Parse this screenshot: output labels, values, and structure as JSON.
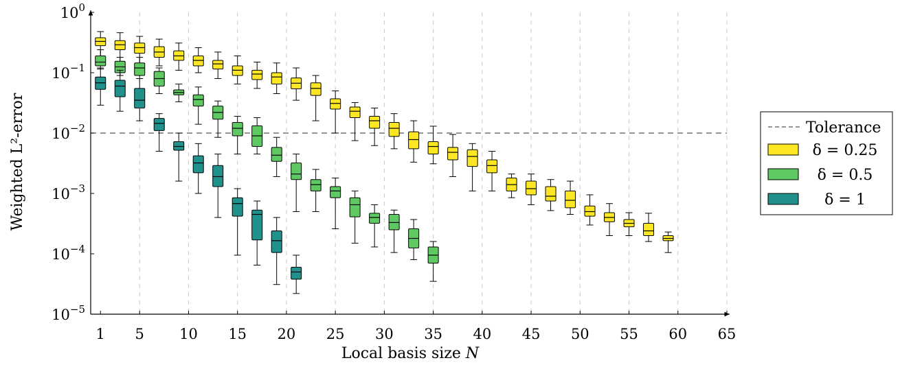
{
  "chart_data": {
    "type": "box",
    "xlabel": "Local basis size N",
    "ylabel": "Weighted L²-error",
    "x_ticks": [
      1,
      5,
      10,
      15,
      20,
      25,
      30,
      35,
      40,
      45,
      50,
      55,
      60,
      65
    ],
    "y_ticks": [
      {
        "value": 1,
        "base": "10",
        "exp": "0"
      },
      {
        "value": 0.1,
        "base": "10",
        "exp": "−1"
      },
      {
        "value": 0.01,
        "base": "10",
        "exp": "−2"
      },
      {
        "value": 0.001,
        "base": "10",
        "exp": "−3"
      },
      {
        "value": 0.0001,
        "base": "10",
        "exp": "−4"
      },
      {
        "value": 1e-05,
        "base": "10",
        "exp": "−5"
      }
    ],
    "xlim": [
      0,
      65
    ],
    "ylim": [
      1e-05,
      1
    ],
    "y_scale": "log",
    "grid": "x-dashed",
    "legend_position": "right",
    "tolerance": {
      "label": "Tolerance",
      "value": 0.01,
      "color": "#555555"
    },
    "series": [
      {
        "name": "δ = 0.25",
        "color": "#fde725",
        "boxes": [
          {
            "x": 1,
            "low": 0.15,
            "q1": 0.28,
            "median": 0.33,
            "q3": 0.38,
            "high": 0.48
          },
          {
            "x": 3,
            "low": 0.15,
            "q1": 0.24,
            "median": 0.29,
            "q3": 0.34,
            "high": 0.46
          },
          {
            "x": 5,
            "low": 0.14,
            "q1": 0.21,
            "median": 0.26,
            "q3": 0.31,
            "high": 0.4
          },
          {
            "x": 7,
            "low": 0.13,
            "q1": 0.18,
            "median": 0.22,
            "q3": 0.27,
            "high": 0.36
          },
          {
            "x": 9,
            "low": 0.11,
            "q1": 0.16,
            "median": 0.19,
            "q3": 0.23,
            "high": 0.31
          },
          {
            "x": 11,
            "low": 0.1,
            "q1": 0.13,
            "median": 0.16,
            "q3": 0.19,
            "high": 0.26
          },
          {
            "x": 13,
            "low": 0.08,
            "q1": 0.115,
            "median": 0.14,
            "q3": 0.16,
            "high": 0.22
          },
          {
            "x": 15,
            "low": 0.065,
            "q1": 0.09,
            "median": 0.11,
            "q3": 0.13,
            "high": 0.19
          },
          {
            "x": 17,
            "low": 0.055,
            "q1": 0.077,
            "median": 0.095,
            "q3": 0.11,
            "high": 0.15
          },
          {
            "x": 19,
            "low": 0.045,
            "q1": 0.065,
            "median": 0.085,
            "q3": 0.1,
            "high": 0.145
          },
          {
            "x": 21,
            "low": 0.035,
            "q1": 0.054,
            "median": 0.067,
            "q3": 0.082,
            "high": 0.12
          },
          {
            "x": 23,
            "low": 0.016,
            "q1": 0.042,
            "median": 0.055,
            "q3": 0.068,
            "high": 0.09
          },
          {
            "x": 25,
            "low": 0.01,
            "q1": 0.025,
            "median": 0.031,
            "q3": 0.037,
            "high": 0.05
          },
          {
            "x": 27,
            "low": 0.0075,
            "q1": 0.018,
            "median": 0.023,
            "q3": 0.027,
            "high": 0.032
          },
          {
            "x": 29,
            "low": 0.0062,
            "q1": 0.012,
            "median": 0.016,
            "q3": 0.019,
            "high": 0.026
          },
          {
            "x": 31,
            "low": 0.0055,
            "q1": 0.0088,
            "median": 0.012,
            "q3": 0.015,
            "high": 0.021
          },
          {
            "x": 33,
            "low": 0.0033,
            "q1": 0.0055,
            "median": 0.0078,
            "q3": 0.0105,
            "high": 0.016
          },
          {
            "x": 35,
            "low": 0.0031,
            "q1": 0.0045,
            "median": 0.006,
            "q3": 0.0072,
            "high": 0.013
          },
          {
            "x": 37,
            "low": 0.0019,
            "q1": 0.0036,
            "median": 0.0048,
            "q3": 0.0058,
            "high": 0.0095
          },
          {
            "x": 39,
            "low": 0.0011,
            "q1": 0.0028,
            "median": 0.0041,
            "q3": 0.0053,
            "high": 0.0067
          },
          {
            "x": 41,
            "low": 0.0011,
            "q1": 0.0022,
            "median": 0.0029,
            "q3": 0.0036,
            "high": 0.005
          },
          {
            "x": 43,
            "low": 0.00085,
            "q1": 0.0011,
            "median": 0.0014,
            "q3": 0.0018,
            "high": 0.0021
          },
          {
            "x": 45,
            "low": 0.00065,
            "q1": 0.00095,
            "median": 0.0012,
            "q3": 0.0016,
            "high": 0.0021
          },
          {
            "x": 47,
            "low": 0.00052,
            "q1": 0.00075,
            "median": 0.0009,
            "q3": 0.0013,
            "high": 0.0017
          },
          {
            "x": 49,
            "low": 0.00045,
            "q1": 0.00058,
            "median": 0.00077,
            "q3": 0.0011,
            "high": 0.0016
          },
          {
            "x": 51,
            "low": 0.0003,
            "q1": 0.00042,
            "median": 0.0005,
            "q3": 0.00062,
            "high": 0.00095
          },
          {
            "x": 53,
            "low": 0.0002,
            "q1": 0.00034,
            "median": 0.0004,
            "q3": 0.00048,
            "high": 0.00068
          },
          {
            "x": 55,
            "low": 0.0002,
            "q1": 0.00028,
            "median": 0.00032,
            "q3": 0.00037,
            "high": 0.00048
          },
          {
            "x": 57,
            "low": 0.00016,
            "q1": 0.0002,
            "median": 0.00024,
            "q3": 0.00032,
            "high": 0.00047
          },
          {
            "x": 59,
            "low": 0.000105,
            "q1": 0.000165,
            "median": 0.00018,
            "q3": 0.0002,
            "high": 0.00023
          }
        ]
      },
      {
        "name": "δ = 0.5",
        "color": "#5ec962",
        "boxes": [
          {
            "x": 1,
            "low": 0.115,
            "q1": 0.13,
            "median": 0.15,
            "q3": 0.19,
            "high": 0.24
          },
          {
            "x": 3,
            "low": 0.09,
            "q1": 0.1,
            "median": 0.125,
            "q3": 0.155,
            "high": 0.18
          },
          {
            "x": 5,
            "low": 0.08,
            "q1": 0.09,
            "median": 0.12,
            "q3": 0.145,
            "high": 0.18
          },
          {
            "x": 7,
            "low": 0.045,
            "q1": 0.06,
            "median": 0.08,
            "q3": 0.105,
            "high": 0.12
          },
          {
            "x": 9,
            "low": 0.033,
            "q1": 0.043,
            "median": 0.047,
            "q3": 0.052,
            "high": 0.065
          },
          {
            "x": 11,
            "low": 0.014,
            "q1": 0.028,
            "median": 0.036,
            "q3": 0.043,
            "high": 0.058
          },
          {
            "x": 13,
            "low": 0.0085,
            "q1": 0.017,
            "median": 0.022,
            "q3": 0.028,
            "high": 0.034
          },
          {
            "x": 15,
            "low": 0.0045,
            "q1": 0.009,
            "median": 0.012,
            "q3": 0.015,
            "high": 0.019
          },
          {
            "x": 17,
            "low": 0.0045,
            "q1": 0.006,
            "median": 0.009,
            "q3": 0.0132,
            "high": 0.018
          },
          {
            "x": 19,
            "low": 0.0019,
            "q1": 0.0034,
            "median": 0.0043,
            "q3": 0.0058,
            "high": 0.0085
          },
          {
            "x": 21,
            "low": 0.0005,
            "q1": 0.0017,
            "median": 0.0021,
            "q3": 0.0032,
            "high": 0.0045
          },
          {
            "x": 23,
            "low": 0.0005,
            "q1": 0.0011,
            "median": 0.0014,
            "q3": 0.0017,
            "high": 0.0025
          },
          {
            "x": 25,
            "low": 0.00026,
            "q1": 0.00085,
            "median": 0.0011,
            "q3": 0.0013,
            "high": 0.0018
          },
          {
            "x": 27,
            "low": 0.00015,
            "q1": 0.00041,
            "median": 0.00065,
            "q3": 0.00085,
            "high": 0.0011
          },
          {
            "x": 29,
            "low": 0.00013,
            "q1": 0.00032,
            "median": 0.0004,
            "q3": 0.00047,
            "high": 0.00065
          },
          {
            "x": 31,
            "low": 0.000105,
            "q1": 0.00025,
            "median": 0.00033,
            "q3": 0.00045,
            "high": 0.00053
          },
          {
            "x": 33,
            "low": 8e-05,
            "q1": 0.000125,
            "median": 0.00018,
            "q3": 0.00026,
            "high": 0.00037
          },
          {
            "x": 35,
            "low": 3.5e-05,
            "q1": 7e-05,
            "median": 9.5e-05,
            "q3": 0.00013,
            "high": 0.00016
          }
        ]
      },
      {
        "name": "δ = 1",
        "color": "#21918c",
        "boxes": [
          {
            "x": 1,
            "low": 0.029,
            "q1": 0.053,
            "median": 0.068,
            "q3": 0.085,
            "high": 0.12
          },
          {
            "x": 3,
            "low": 0.023,
            "q1": 0.04,
            "median": 0.06,
            "q3": 0.075,
            "high": 0.11
          },
          {
            "x": 5,
            "low": 0.016,
            "q1": 0.026,
            "median": 0.035,
            "q3": 0.055,
            "high": 0.08
          },
          {
            "x": 7,
            "low": 0.005,
            "q1": 0.011,
            "median": 0.0145,
            "q3": 0.0175,
            "high": 0.021
          },
          {
            "x": 9,
            "low": 0.0016,
            "q1": 0.0052,
            "median": 0.006,
            "q3": 0.0072,
            "high": 0.01
          },
          {
            "x": 11,
            "low": 0.001,
            "q1": 0.0022,
            "median": 0.0032,
            "q3": 0.0042,
            "high": 0.0067
          },
          {
            "x": 13,
            "low": 0.0004,
            "q1": 0.0013,
            "median": 0.0019,
            "q3": 0.0029,
            "high": 0.0045
          },
          {
            "x": 15,
            "low": 9.5e-05,
            "q1": 0.00042,
            "median": 0.00068,
            "q3": 0.00085,
            "high": 0.0012
          },
          {
            "x": 17,
            "low": 6.5e-05,
            "q1": 0.00017,
            "median": 0.00045,
            "q3": 0.00053,
            "high": 0.00075
          },
          {
            "x": 19,
            "low": 3.1e-05,
            "q1": 0.000105,
            "median": 0.000165,
            "q3": 0.00024,
            "high": 0.0004
          },
          {
            "x": 21,
            "low": 2.2e-05,
            "q1": 3.8e-05,
            "median": 5e-05,
            "q3": 6e-05,
            "high": 9.5e-05
          }
        ]
      }
    ]
  }
}
